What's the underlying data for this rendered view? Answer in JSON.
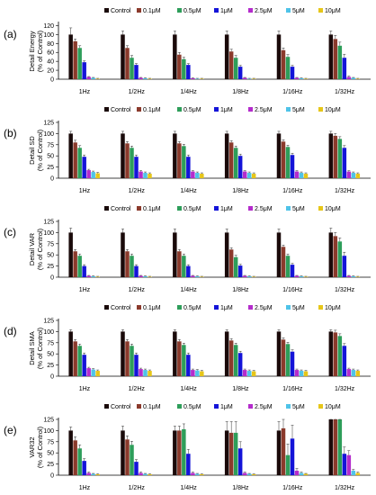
{
  "chart_data": {
    "type": "bar",
    "legend_placement": "top",
    "grid": false,
    "series": [
      {
        "name": "Control",
        "color": "#1a0a0a"
      },
      {
        "name": "0.1μM",
        "color": "#8b3a2c"
      },
      {
        "name": "0.5μM",
        "color": "#2e9e5a"
      },
      {
        "name": "1μM",
        "color": "#1414d8"
      },
      {
        "name": "2.5μM",
        "color": "#b42ccc"
      },
      {
        "name": "5μM",
        "color": "#4fc3e8"
      },
      {
        "name": "10μM",
        "color": "#e6c619"
      }
    ],
    "categories": [
      "1Hz",
      "1/2Hz",
      "1/4Hz",
      "1/8Hz",
      "1/16Hz",
      "1/32Hz"
    ],
    "panels": [
      {
        "letter": "(a)",
        "ylabel": [
          "Detail Energy",
          "(% of Control)"
        ],
        "ylim": [
          0,
          125
        ],
        "yticks": [
          0,
          20,
          40,
          60,
          80,
          100,
          120
        ],
        "values": [
          [
            100,
            85,
            70,
            38,
            5,
            3,
            1
          ],
          [
            100,
            70,
            48,
            32,
            3,
            2,
            1
          ],
          [
            100,
            55,
            45,
            32,
            2,
            1,
            1
          ],
          [
            100,
            62,
            48,
            28,
            3,
            1,
            1
          ],
          [
            100,
            65,
            50,
            28,
            3,
            2,
            1
          ],
          [
            100,
            90,
            75,
            48,
            5,
            3,
            1
          ]
        ],
        "errors": [
          [
            15,
            5,
            5,
            3,
            1,
            1,
            1
          ],
          [
            8,
            5,
            5,
            3,
            1,
            1,
            1
          ],
          [
            8,
            5,
            4,
            3,
            1,
            1,
            1
          ],
          [
            8,
            5,
            5,
            3,
            1,
            1,
            1
          ],
          [
            8,
            5,
            5,
            3,
            1,
            1,
            1
          ],
          [
            8,
            8,
            8,
            8,
            2,
            1,
            1
          ]
        ]
      },
      {
        "letter": "(b)",
        "ylabel": [
          "Detail SD",
          "(% of Control)"
        ],
        "ylim": [
          0,
          125
        ],
        "yticks": [
          0,
          25,
          50,
          75,
          100,
          125
        ],
        "values": [
          [
            100,
            80,
            68,
            48,
            18,
            14,
            11
          ],
          [
            100,
            78,
            68,
            48,
            15,
            12,
            10
          ],
          [
            100,
            78,
            72,
            48,
            15,
            12,
            10
          ],
          [
            100,
            80,
            68,
            50,
            15,
            12,
            10
          ],
          [
            100,
            82,
            70,
            52,
            15,
            12,
            10
          ],
          [
            100,
            95,
            88,
            68,
            15,
            12,
            10
          ]
        ],
        "errors": [
          [
            5,
            5,
            5,
            4,
            2,
            2,
            2
          ],
          [
            5,
            4,
            4,
            4,
            2,
            2,
            2
          ],
          [
            5,
            4,
            4,
            4,
            2,
            2,
            2
          ],
          [
            5,
            4,
            4,
            4,
            2,
            2,
            2
          ],
          [
            5,
            4,
            4,
            4,
            2,
            2,
            2
          ],
          [
            5,
            5,
            5,
            5,
            2,
            2,
            2
          ]
        ]
      },
      {
        "letter": "(c)",
        "ylabel": [
          "Detail VAR",
          "(% of Control)"
        ],
        "ylim": [
          0,
          125
        ],
        "yticks": [
          0,
          25,
          50,
          75,
          100,
          125
        ],
        "values": [
          [
            100,
            58,
            48,
            25,
            3,
            2,
            1
          ],
          [
            100,
            58,
            48,
            25,
            3,
            2,
            1
          ],
          [
            100,
            58,
            48,
            25,
            3,
            2,
            1
          ],
          [
            100,
            62,
            45,
            26,
            3,
            2,
            1
          ],
          [
            100,
            68,
            48,
            28,
            3,
            2,
            1
          ],
          [
            100,
            92,
            80,
            48,
            3,
            2,
            1
          ]
        ],
        "errors": [
          [
            10,
            4,
            4,
            3,
            1,
            1,
            1
          ],
          [
            8,
            4,
            4,
            3,
            1,
            1,
            1
          ],
          [
            8,
            4,
            4,
            3,
            1,
            1,
            1
          ],
          [
            8,
            4,
            4,
            3,
            1,
            1,
            1
          ],
          [
            8,
            4,
            4,
            3,
            1,
            1,
            1
          ],
          [
            10,
            8,
            8,
            8,
            1,
            1,
            1
          ]
        ]
      },
      {
        "letter": "(d)",
        "ylabel": [
          "Detail SMA",
          "(% of Control)"
        ],
        "ylim": [
          0,
          125
        ],
        "yticks": [
          0,
          25,
          50,
          75,
          100,
          125
        ],
        "values": [
          [
            100,
            78,
            68,
            48,
            18,
            15,
            12
          ],
          [
            100,
            78,
            68,
            48,
            16,
            14,
            12
          ],
          [
            100,
            78,
            70,
            48,
            14,
            13,
            11
          ],
          [
            100,
            80,
            70,
            52,
            14,
            12,
            11
          ],
          [
            100,
            82,
            72,
            55,
            14,
            12,
            11
          ],
          [
            100,
            98,
            90,
            68,
            16,
            14,
            12
          ]
        ],
        "errors": [
          [
            4,
            4,
            4,
            4,
            2,
            2,
            2
          ],
          [
            4,
            4,
            4,
            4,
            2,
            2,
            2
          ],
          [
            4,
            4,
            4,
            4,
            2,
            2,
            2
          ],
          [
            4,
            4,
            4,
            4,
            2,
            2,
            2
          ],
          [
            4,
            4,
            4,
            4,
            2,
            2,
            2
          ],
          [
            4,
            5,
            5,
            5,
            2,
            2,
            2
          ]
        ]
      },
      {
        "letter": "(e)",
        "ylabel": [
          "VAR32",
          "(% of Control)"
        ],
        "ylim": [
          0,
          125
        ],
        "yticks": [
          0,
          25,
          50,
          75,
          100,
          125
        ],
        "values": [
          [
            100,
            78,
            60,
            32,
            5,
            3,
            2
          ],
          [
            100,
            80,
            68,
            30,
            5,
            3,
            2
          ],
          [
            100,
            100,
            103,
            48,
            5,
            3,
            2
          ],
          [
            100,
            95,
            95,
            60,
            5,
            3,
            2
          ],
          [
            100,
            105,
            45,
            82,
            10,
            5,
            3
          ],
          [
            125,
            125,
            125,
            48,
            45,
            10,
            5
          ]
        ],
        "errors": [
          [
            8,
            8,
            8,
            5,
            2,
            1,
            1
          ],
          [
            10,
            8,
            8,
            5,
            2,
            1,
            1
          ],
          [
            10,
            10,
            12,
            10,
            2,
            1,
            1
          ],
          [
            20,
            25,
            25,
            15,
            2,
            1,
            1
          ],
          [
            20,
            30,
            25,
            30,
            5,
            2,
            1
          ],
          [
            20,
            20,
            20,
            15,
            10,
            3,
            2
          ]
        ]
      }
    ]
  }
}
